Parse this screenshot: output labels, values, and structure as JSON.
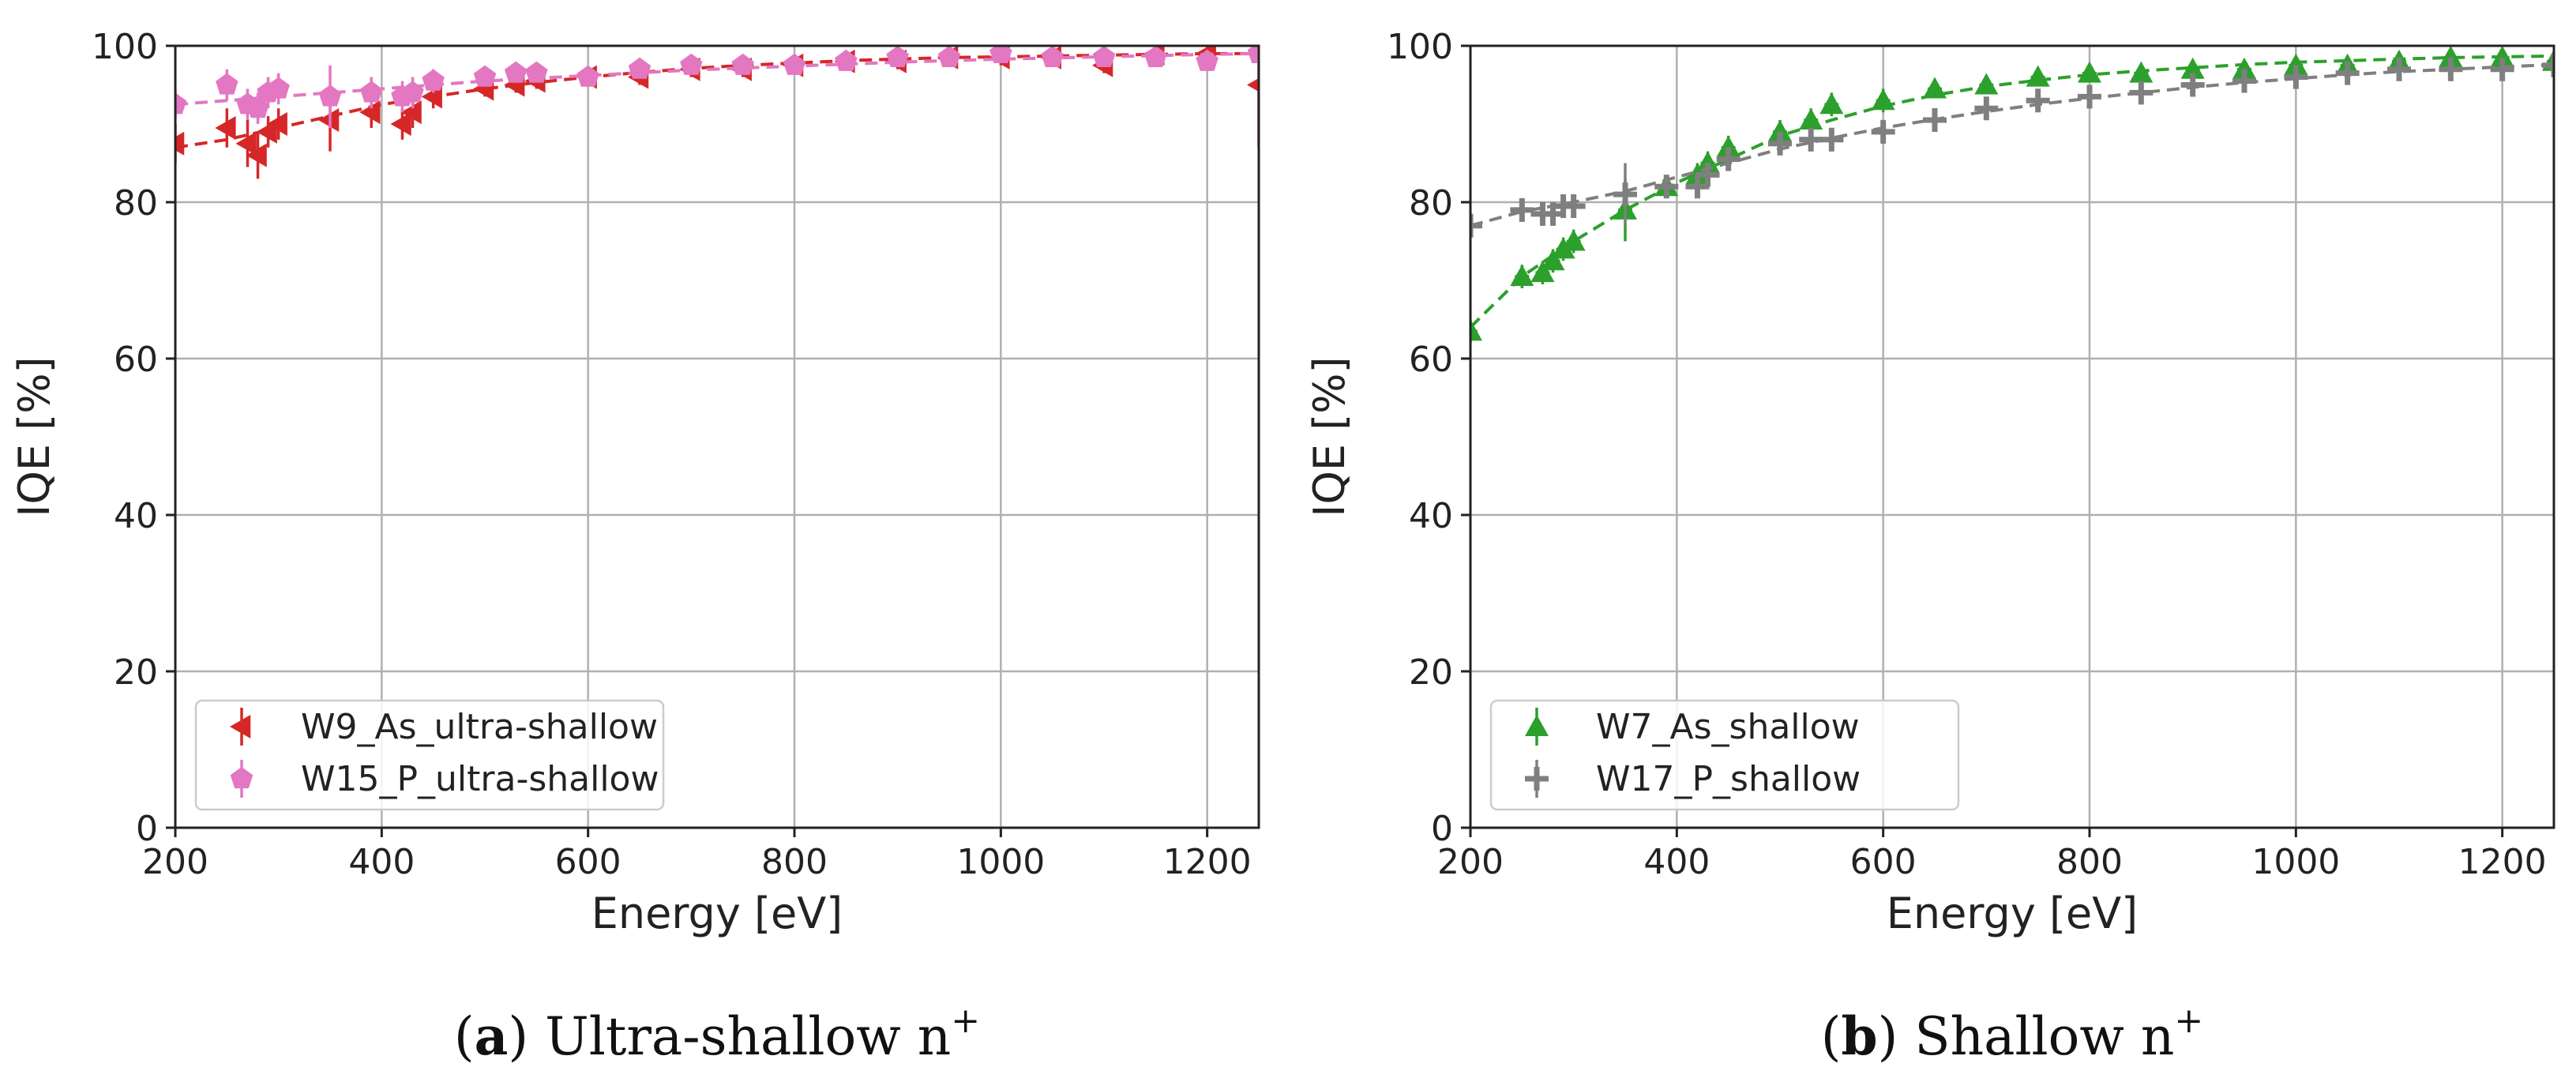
{
  "chart_data": [
    {
      "type": "scatter",
      "panel": "a",
      "xlabel": "Energy [eV]",
      "ylabel": "IQE [%]",
      "xlim": [
        200,
        1250
      ],
      "ylim": [
        0,
        100
      ],
      "xticks": [
        200,
        400,
        600,
        800,
        1000,
        1200
      ],
      "yticks": [
        0,
        20,
        40,
        60,
        80,
        100
      ],
      "grid": true,
      "legend_position": "lower-left",
      "caption": {
        "letter": "a",
        "text": " Ultra-shallow n",
        "sup": "+"
      },
      "series": [
        {
          "name": "W9_As_ultra-shallow",
          "color": "#d62728",
          "marker": "triangle-left",
          "x": [
            200,
            250,
            270,
            280,
            290,
            300,
            350,
            390,
            420,
            430,
            450,
            500,
            530,
            550,
            600,
            650,
            700,
            750,
            800,
            850,
            900,
            950,
            1000,
            1050,
            1100,
            1150,
            1200,
            1250
          ],
          "y": [
            87.5,
            89.5,
            87.5,
            86.0,
            89.0,
            90.0,
            90.5,
            91.5,
            90.0,
            91.5,
            93.5,
            94.5,
            95.0,
            95.5,
            96.0,
            96.0,
            97.0,
            97.0,
            97.5,
            98.0,
            98.0,
            98.5,
            98.5,
            98.5,
            97.5,
            99.0,
            99.0,
            95.0
          ],
          "yerr": [
            2.5,
            2.5,
            3.0,
            3.0,
            2.0,
            2.0,
            4.0,
            2.0,
            2.0,
            2.0,
            1.5,
            1.0,
            1.0,
            1.0,
            1.0,
            1.0,
            1.0,
            1.0,
            1.0,
            1.0,
            1.0,
            1.0,
            1.0,
            1.0,
            1.0,
            1.0,
            1.0,
            8.0
          ],
          "fit_x": [
            200,
            250,
            300,
            350,
            400,
            450,
            500,
            550,
            600,
            650,
            700,
            750,
            800,
            850,
            900,
            950,
            1000,
            1050,
            1100,
            1150,
            1200,
            1250
          ],
          "fit_y": [
            87.0,
            88.0,
            89.5,
            91.0,
            92.5,
            93.5,
            94.5,
            95.3,
            96.0,
            96.6,
            97.1,
            97.5,
            97.8,
            98.1,
            98.3,
            98.5,
            98.6,
            98.7,
            98.8,
            98.9,
            99.0,
            99.0
          ]
        },
        {
          "name": "W15_P_ultra-shallow",
          "color": "#e377c2",
          "marker": "pentagon",
          "x": [
            200,
            250,
            270,
            280,
            290,
            300,
            350,
            390,
            420,
            430,
            450,
            500,
            530,
            550,
            600,
            650,
            700,
            750,
            800,
            850,
            900,
            950,
            1000,
            1050,
            1100,
            1150,
            1200,
            1250
          ],
          "y": [
            92.5,
            95.0,
            92.5,
            92.0,
            94.0,
            94.5,
            93.5,
            94.0,
            93.5,
            94.0,
            95.5,
            96.0,
            96.5,
            96.5,
            96.0,
            97.0,
            97.5,
            97.5,
            97.5,
            98.0,
            98.5,
            98.5,
            99.0,
            98.5,
            98.5,
            98.5,
            98.0,
            99.0
          ],
          "yerr": [
            2.0,
            2.0,
            2.0,
            2.0,
            2.0,
            2.0,
            4.0,
            2.0,
            2.0,
            2.0,
            1.5,
            1.0,
            1.0,
            1.0,
            1.0,
            1.0,
            1.0,
            1.0,
            1.0,
            1.0,
            1.0,
            1.0,
            1.0,
            1.0,
            1.0,
            1.0,
            1.0,
            1.0
          ],
          "fit_x": [
            200,
            300,
            400,
            500,
            600,
            700,
            800,
            900,
            1000,
            1100,
            1200,
            1250
          ],
          "fit_y": [
            92.5,
            93.5,
            94.5,
            95.5,
            96.2,
            96.9,
            97.4,
            97.9,
            98.3,
            98.6,
            98.9,
            99.0
          ]
        }
      ]
    },
    {
      "type": "scatter",
      "panel": "b",
      "xlabel": "Energy [eV]",
      "ylabel": "IQE [%]",
      "xlim": [
        200,
        1250
      ],
      "ylim": [
        0,
        100
      ],
      "xticks": [
        200,
        400,
        600,
        800,
        1000,
        1200
      ],
      "yticks": [
        0,
        20,
        40,
        60,
        80,
        100
      ],
      "grid": true,
      "legend_position": "lower-left",
      "caption": {
        "letter": "b",
        "text": " Shallow n",
        "sup": "+"
      },
      "series": [
        {
          "name": "W7_As_shallow",
          "color": "#2ca02c",
          "marker": "triangle-up",
          "x": [
            200,
            250,
            270,
            280,
            290,
            300,
            350,
            390,
            420,
            430,
            450,
            500,
            530,
            550,
            600,
            650,
            700,
            750,
            800,
            850,
            900,
            950,
            1000,
            1050,
            1100,
            1150,
            1200,
            1250
          ],
          "y": [
            63.5,
            70.5,
            71.0,
            72.5,
            74.0,
            75.0,
            79.0,
            82.0,
            83.5,
            85.0,
            87.0,
            89.0,
            90.5,
            92.5,
            93.0,
            94.5,
            95.0,
            96.0,
            96.5,
            96.5,
            97.0,
            97.0,
            97.5,
            97.5,
            98.0,
            98.5,
            98.5,
            98.0
          ],
          "yerr": [
            1.5,
            1.5,
            1.5,
            1.5,
            1.5,
            1.5,
            4.0,
            1.5,
            1.5,
            1.5,
            1.5,
            1.5,
            1.5,
            1.5,
            1.5,
            1.0,
            1.0,
            1.0,
            1.0,
            1.0,
            1.0,
            1.0,
            1.0,
            1.0,
            1.0,
            1.0,
            1.0,
            1.0
          ],
          "fit_x": [
            200,
            250,
            300,
            350,
            400,
            450,
            500,
            550,
            600,
            650,
            700,
            750,
            800,
            850,
            900,
            950,
            1000,
            1050,
            1100,
            1150,
            1200,
            1250
          ],
          "fit_y": [
            64.0,
            70.5,
            75.0,
            79.0,
            82.5,
            85.5,
            88.5,
            90.5,
            92.3,
            93.7,
            94.8,
            95.6,
            96.3,
            96.8,
            97.2,
            97.6,
            97.9,
            98.1,
            98.3,
            98.5,
            98.6,
            98.7
          ]
        },
        {
          "name": "W17_P_shallow",
          "color": "#7f7f7f",
          "marker": "plus",
          "x": [
            200,
            250,
            270,
            280,
            290,
            300,
            350,
            390,
            420,
            430,
            450,
            500,
            530,
            550,
            600,
            650,
            700,
            750,
            800,
            850,
            900,
            950,
            1000,
            1050,
            1100,
            1150,
            1200,
            1250
          ],
          "y": [
            77.0,
            79.0,
            78.5,
            78.5,
            79.5,
            79.5,
            81.0,
            82.0,
            82.0,
            83.5,
            85.5,
            87.5,
            88.0,
            88.0,
            89.0,
            90.5,
            92.0,
            93.0,
            93.5,
            94.0,
            95.0,
            95.5,
            96.0,
            96.5,
            97.0,
            97.0,
            97.0,
            97.5
          ],
          "yerr": [
            1.5,
            1.5,
            1.5,
            1.5,
            1.5,
            1.5,
            4.0,
            1.5,
            1.5,
            1.5,
            1.5,
            1.5,
            1.5,
            1.5,
            1.5,
            1.0,
            1.0,
            1.0,
            1.0,
            1.0,
            1.0,
            1.0,
            1.0,
            1.0,
            1.0,
            1.0,
            1.0,
            1.0
          ],
          "fit_x": [
            200,
            250,
            300,
            350,
            400,
            450,
            500,
            550,
            600,
            650,
            700,
            750,
            800,
            850,
            900,
            950,
            1000,
            1050,
            1100,
            1150,
            1200,
            1250
          ],
          "fit_y": [
            77.0,
            78.8,
            80.0,
            81.4,
            83.2,
            85.0,
            86.8,
            88.2,
            89.5,
            90.6,
            91.6,
            92.5,
            93.3,
            94.0,
            94.7,
            95.3,
            95.8,
            96.3,
            96.7,
            97.0,
            97.3,
            97.6
          ]
        }
      ]
    }
  ]
}
